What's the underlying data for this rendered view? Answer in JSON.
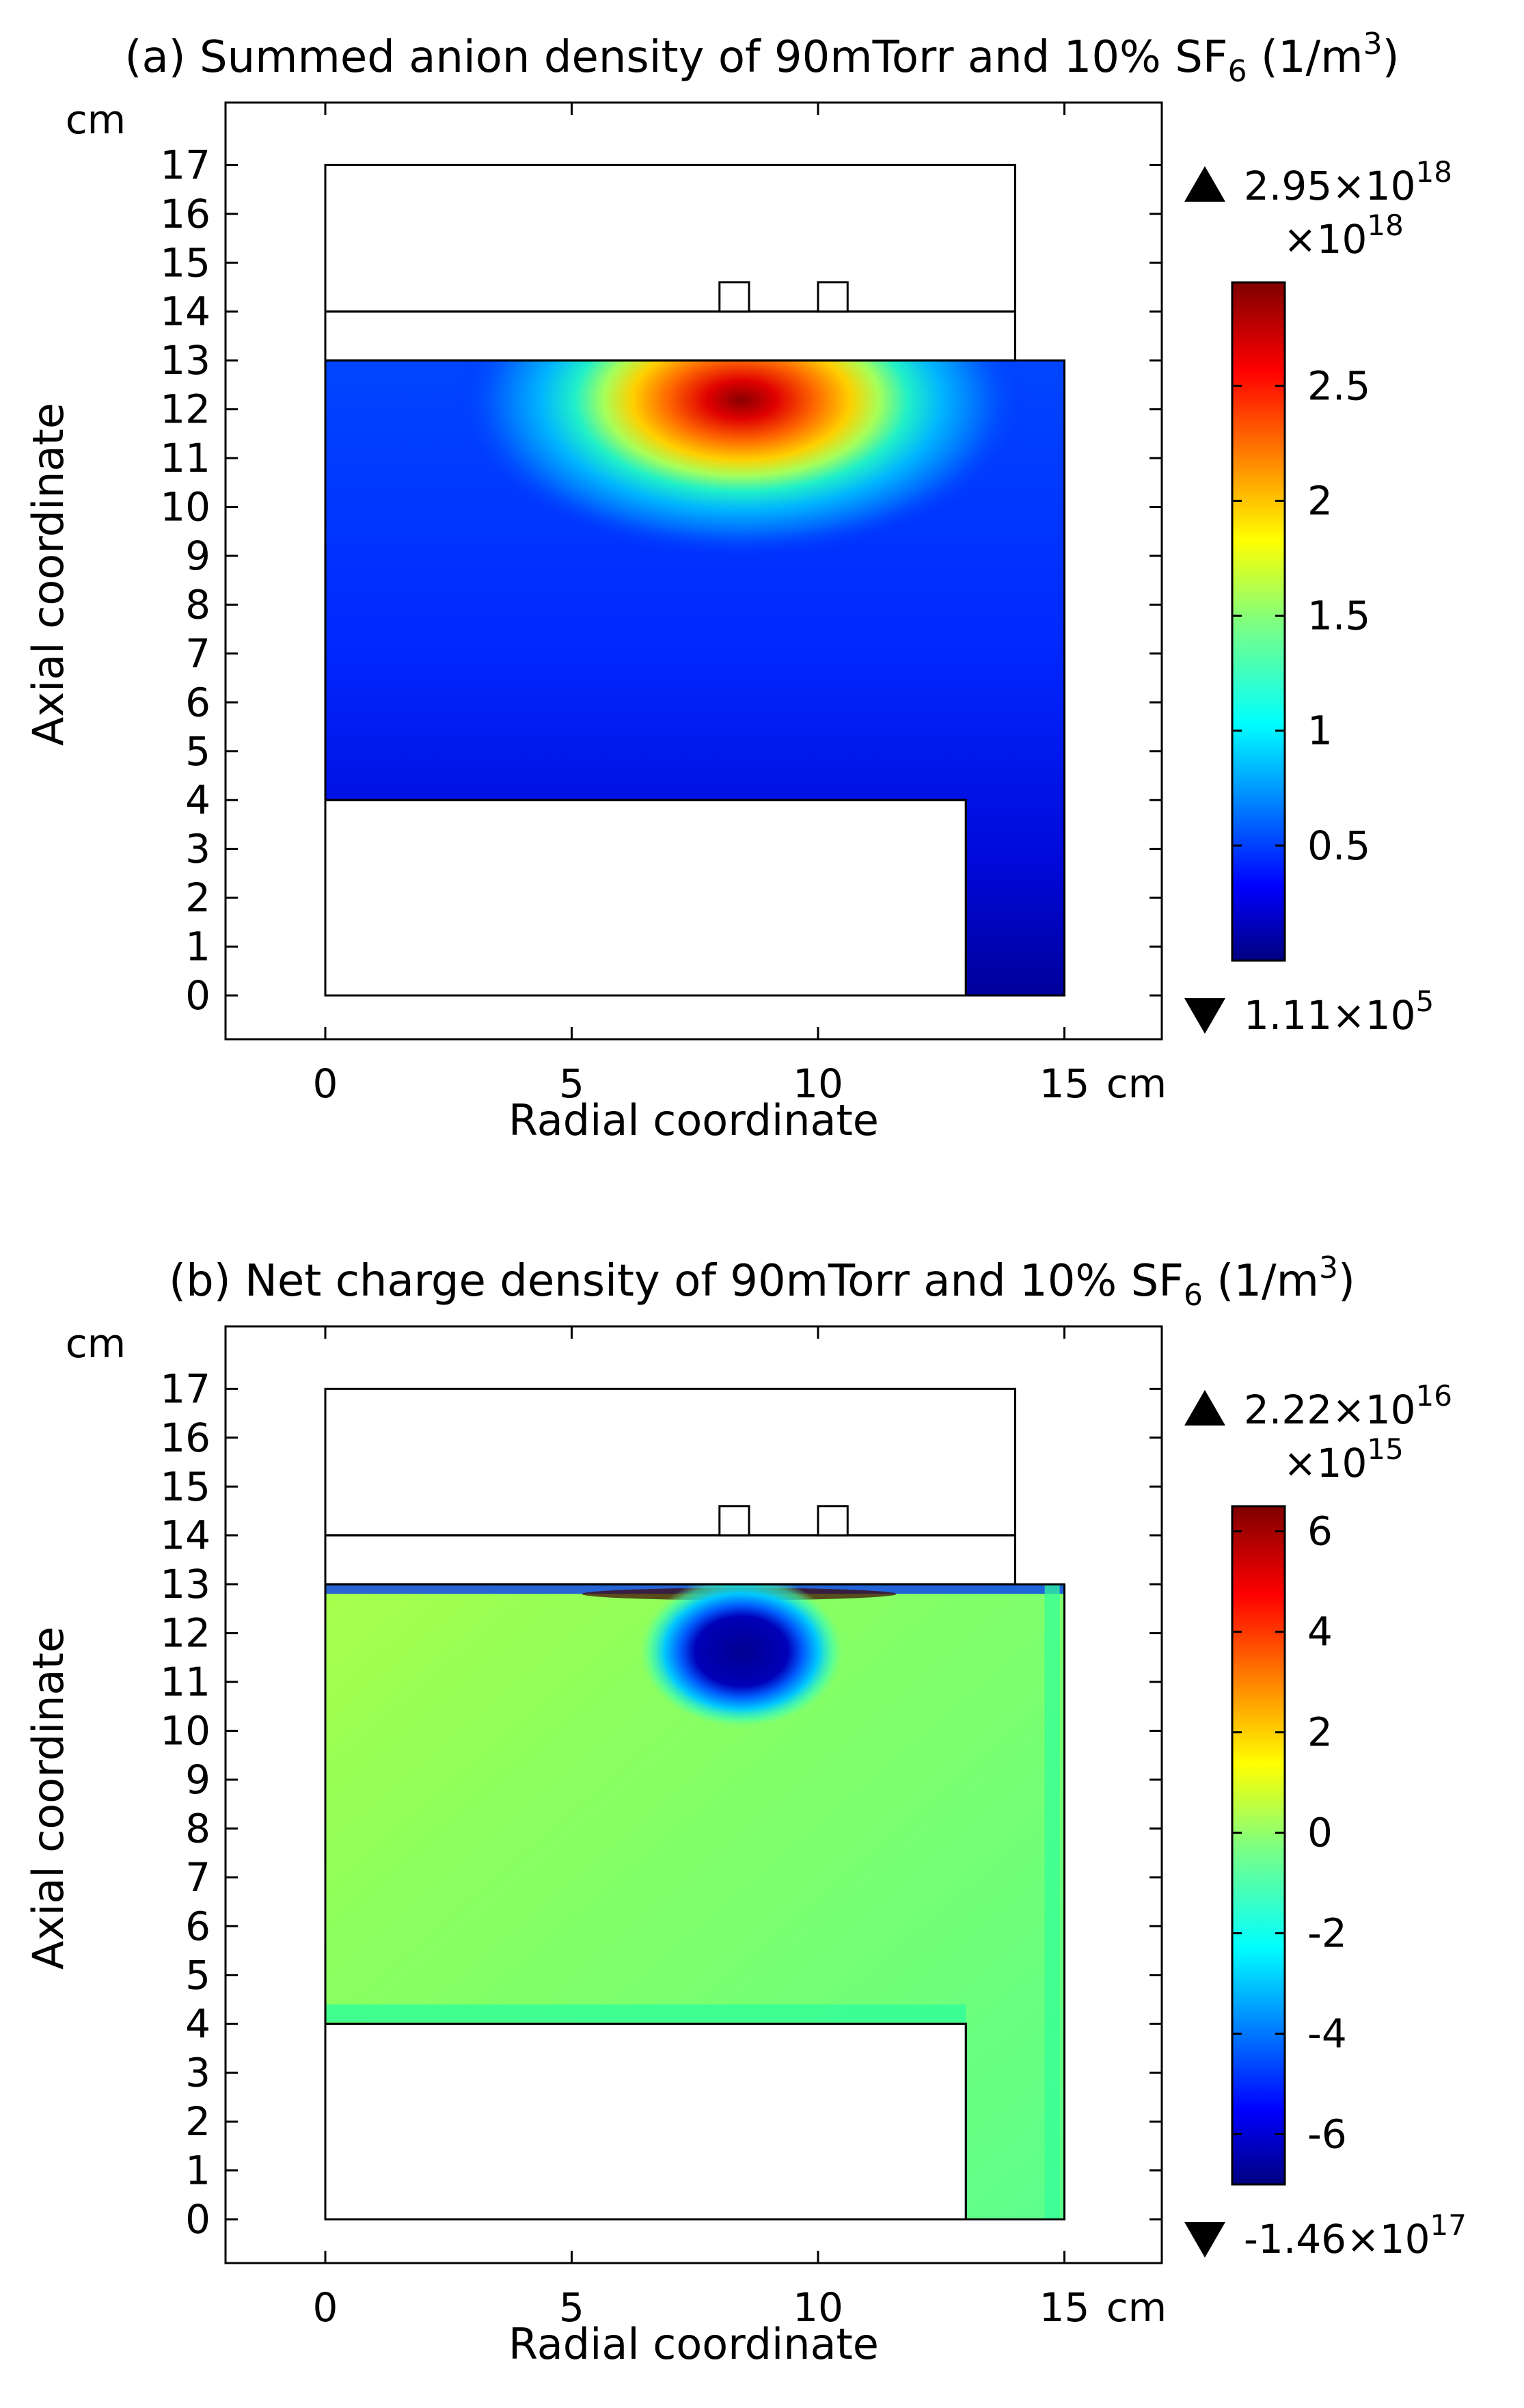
{
  "panels": [
    {
      "id": "a",
      "title": "(a) Summed anion density of 90mTorr and 10% SF",
      "title_sub": "6",
      "title_unit_pre": " (1/m",
      "title_unit_sup": "3",
      "title_unit_post": ")",
      "y_unit": "cm",
      "x_unit": "cm",
      "ylabel": "Axial coordinate",
      "xlabel": "Radial coordinate",
      "xticks": [
        0,
        5,
        10,
        15
      ],
      "yticks": [
        0,
        1,
        2,
        3,
        4,
        5,
        6,
        7,
        8,
        9,
        10,
        11,
        12,
        13,
        14,
        15,
        16,
        17
      ],
      "max_label": "2.95×10",
      "max_exp": "18",
      "scale_label": "×10",
      "scale_exp": "18",
      "min_label": "1.11×10",
      "min_exp": "5",
      "cb_ticks": [
        "2.5",
        "2",
        "1.5",
        "1",
        "0.5"
      ]
    },
    {
      "id": "b",
      "title": "(b) Net charge density of 90mTorr and 10% SF",
      "title_sub": "6",
      "title_unit_pre": " (1/m",
      "title_unit_sup": "3",
      "title_unit_post": ")",
      "y_unit": "cm",
      "x_unit": "cm",
      "ylabel": "Axial coordinate",
      "xlabel": "Radial coordinate",
      "xticks": [
        0,
        5,
        10,
        15
      ],
      "yticks": [
        0,
        1,
        2,
        3,
        4,
        5,
        6,
        7,
        8,
        9,
        10,
        11,
        12,
        13,
        14,
        15,
        16,
        17
      ],
      "max_label": "2.22×10",
      "max_exp": "16",
      "scale_label": "×10",
      "scale_exp": "15",
      "min_label": "-1.46×10",
      "min_exp": "17",
      "cb_ticks": [
        "6",
        "4",
        "2",
        "0",
        "-2",
        "-4",
        "-6"
      ]
    }
  ],
  "chart_data": [
    {
      "type": "heatmap",
      "title": "(a) Summed anion density of 90mTorr and 10% SF6 (1/m3)",
      "xlabel": "Radial coordinate (cm)",
      "ylabel": "Axial coordinate (cm)",
      "xlim": [
        -2,
        17.5
      ],
      "ylim": [
        -0.9,
        18.2
      ],
      "xticks": [
        0,
        5,
        10,
        15
      ],
      "yticks": [
        0,
        1,
        2,
        3,
        4,
        5,
        6,
        7,
        8,
        9,
        10,
        11,
        12,
        13,
        14,
        15,
        16,
        17
      ],
      "colorbar": {
        "min": 111000,
        "max": 2.95e+18,
        "scale": 1e+18,
        "range": [
          0,
          2.95
        ],
        "ticks": [
          0.5,
          1,
          1.5,
          2,
          2.5
        ]
      },
      "plasma_region": [
        [
          0,
          4
        ],
        [
          13,
          4
        ],
        [
          13,
          0
        ],
        [
          15,
          0
        ],
        [
          15,
          13
        ],
        [
          0,
          13
        ]
      ],
      "peak": {
        "r": 8.4,
        "z": 12.1,
        "value": 2.95e+18
      },
      "outlines": {
        "upper_box": [
          0,
          14,
          14,
          17
        ],
        "dielectric": [
          0,
          13,
          14,
          14
        ],
        "coil_1": [
          8,
          14,
          8.6,
          14.6
        ],
        "coil_2": [
          10,
          14,
          10.6,
          14.6
        ],
        "lower_box": [
          0,
          0,
          13,
          4
        ]
      }
    },
    {
      "type": "heatmap",
      "title": "(b) Net charge density of 90mTorr and 10% SF6 (1/m3)",
      "xlabel": "Radial coordinate (cm)",
      "ylabel": "Axial coordinate (cm)",
      "xlim": [
        -2,
        17.5
      ],
      "ylim": [
        -0.9,
        18.2
      ],
      "xticks": [
        0,
        5,
        10,
        15
      ],
      "yticks": [
        0,
        1,
        2,
        3,
        4,
        5,
        6,
        7,
        8,
        9,
        10,
        11,
        12,
        13,
        14,
        15,
        16,
        17
      ],
      "colorbar": {
        "min": -1.46e+17,
        "max": 2.22e+16,
        "scale": 1000000000000000.0,
        "range": [
          -7,
          6.5
        ],
        "ticks": [
          -6,
          -4,
          -2,
          0,
          2,
          4,
          6
        ]
      },
      "plasma_region": [
        [
          0,
          4
        ],
        [
          13,
          4
        ],
        [
          13,
          0
        ],
        [
          15,
          0
        ],
        [
          15,
          13
        ],
        [
          0,
          13
        ]
      ],
      "background_value": 0.8,
      "negative_blob": {
        "r": 8.4,
        "z": 11.7,
        "value": -6.5
      },
      "outlines": {
        "upper_box": [
          0,
          14,
          14,
          17
        ],
        "dielectric": [
          0,
          13,
          14,
          14
        ],
        "coil_1": [
          8,
          14,
          8.6,
          14.6
        ],
        "coil_2": [
          10,
          14,
          10.6,
          14.6
        ],
        "lower_box": [
          0,
          0,
          13,
          4
        ]
      }
    }
  ]
}
